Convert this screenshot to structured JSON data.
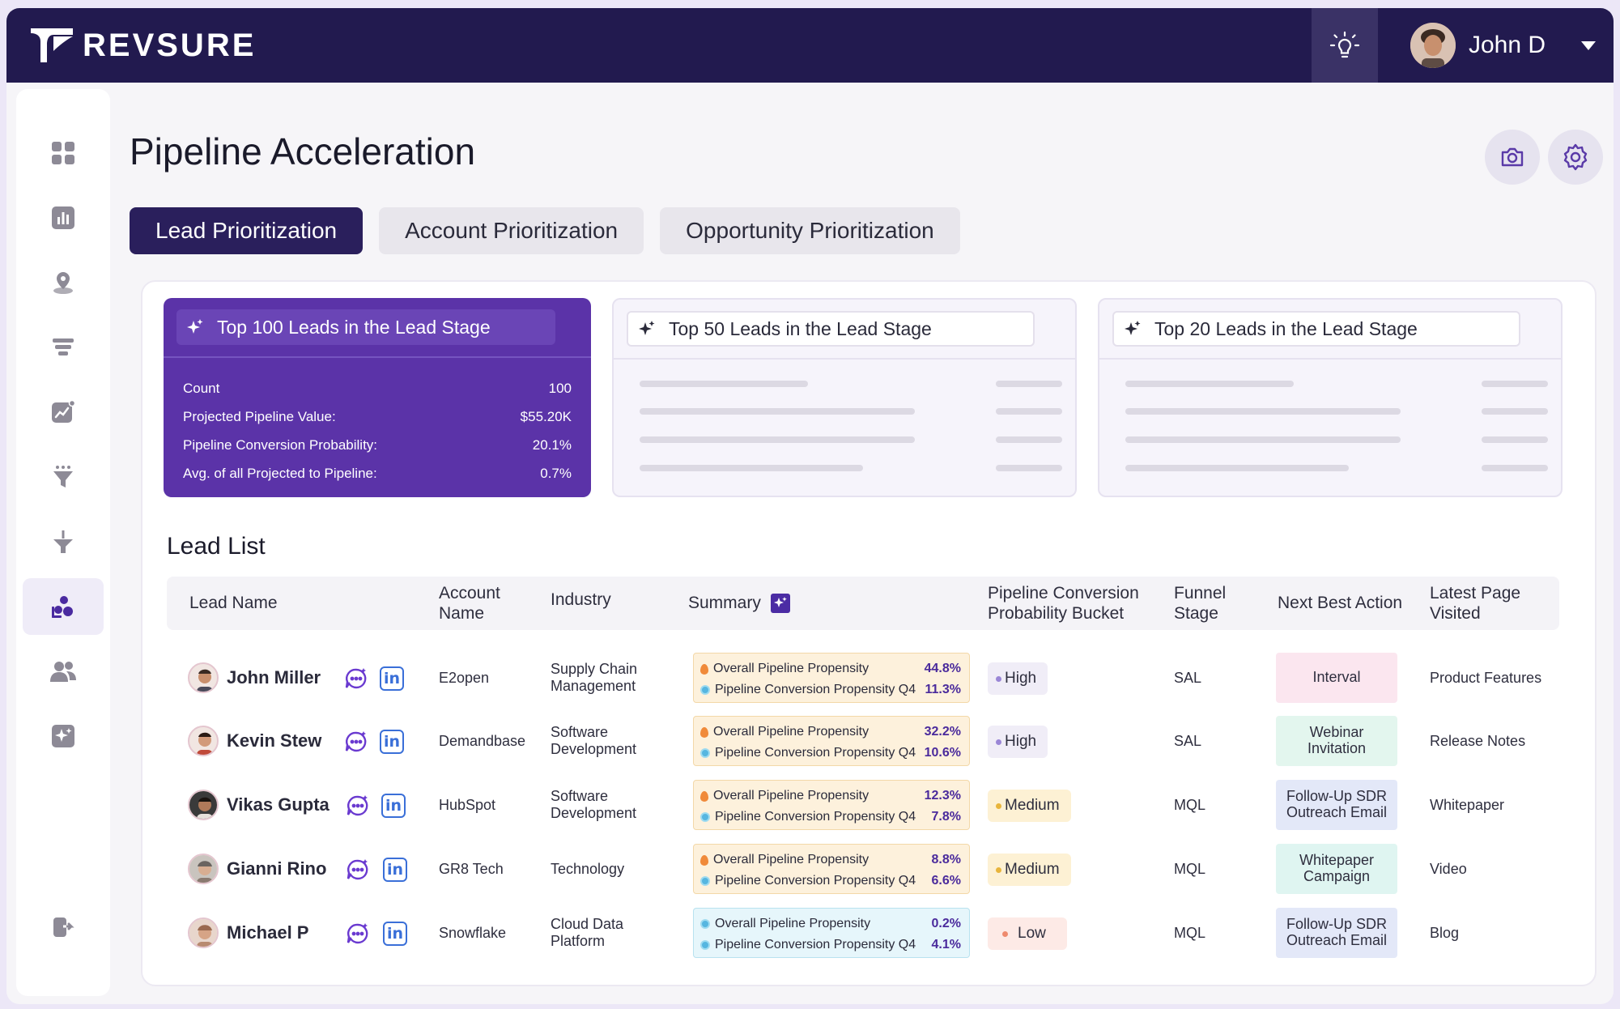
{
  "app": {
    "brand": "REVSURE"
  },
  "user": {
    "name": "John D"
  },
  "icons": {
    "bulb": "lightbulb-icon",
    "camera": "camera-icon",
    "settings": "gear-icon",
    "sparkle": "sparkle-icon",
    "chat": "chat-sparkle-icon",
    "linkedin": "linkedin-icon"
  },
  "sidebar": {
    "items": [
      {
        "name": "dashboard-grid-icon"
      },
      {
        "name": "bar-chart-icon"
      },
      {
        "name": "location-pin-icon"
      },
      {
        "name": "stacked-funnel-icon"
      },
      {
        "name": "trend-chart-icon"
      },
      {
        "name": "filter-funnel-icon"
      },
      {
        "name": "merge-funnel-icon"
      },
      {
        "name": "pipeline-acceleration-icon",
        "active": true
      },
      {
        "name": "users-icon"
      },
      {
        "name": "ai-sparkle-icon"
      },
      {
        "name": "logout-icon"
      }
    ]
  },
  "page": {
    "title": "Pipeline Acceleration"
  },
  "tabs": [
    {
      "label": "Lead Prioritization",
      "active": true
    },
    {
      "label": "Account Prioritization",
      "active": false
    },
    {
      "label": "Opportunity Prioritization",
      "active": false
    }
  ],
  "stats": {
    "top100": {
      "title": "Top 100 Leads in the Lead Stage",
      "rows": [
        {
          "label": "Count",
          "value": "100"
        },
        {
          "label": "Projected Pipeline Value:",
          "value": "$55.20K"
        },
        {
          "label": "Pipeline Conversion Probability:",
          "value": "20.1%"
        },
        {
          "label": "Avg. of all Projected to Pipeline:",
          "value": "0.7%"
        }
      ]
    },
    "top50": {
      "title": "Top 50 Leads in the Lead Stage"
    },
    "top20": {
      "title": "Top 20 Leads in the Lead Stage"
    }
  },
  "lead_list": {
    "title": "Lead List",
    "columns": {
      "lead_name": "Lead Name",
      "account_name_1": "Account",
      "account_name_2": "Name",
      "industry": "Industry",
      "summary": "Summary",
      "bucket_1": "Pipeline Conversion",
      "bucket_2": "Probability Bucket",
      "funnel_1": "Funnel",
      "funnel_2": "Stage",
      "next_action": "Next Best Action",
      "latest_1": "Latest Page",
      "latest_2": "Visited"
    },
    "summary_labels": {
      "overall": "Overall Pipeline Propensity",
      "q4": "Pipeline Conversion Propensity Q4"
    },
    "rows": [
      {
        "name": "John Miller",
        "account": "E2open",
        "industry_1": "Supply Chain",
        "industry_2": "Management",
        "overall": "44.8%",
        "q4": "11.3%",
        "bucket": "High",
        "stage": "SAL",
        "action_1": "Interval",
        "action_2": "",
        "page": "Product Features"
      },
      {
        "name": "Kevin Stew",
        "account": "Demandbase",
        "industry_1": "Software",
        "industry_2": "Development",
        "overall": "32.2%",
        "q4": "10.6%",
        "bucket": "High",
        "stage": "SAL",
        "action_1": "Webinar",
        "action_2": "Invitation",
        "page": "Release Notes"
      },
      {
        "name": "Vikas Gupta",
        "account": "HubSpot",
        "industry_1": "Software",
        "industry_2": "Development",
        "overall": "12.3%",
        "q4": "7.8%",
        "bucket": "Medium",
        "stage": "MQL",
        "action_1": "Follow-Up SDR",
        "action_2": "Outreach Email",
        "page": "Whitepaper"
      },
      {
        "name": "Gianni Rino",
        "account": "GR8 Tech",
        "industry_1": "Technology",
        "industry_2": "",
        "overall": "8.8%",
        "q4": "6.6%",
        "bucket": "Medium",
        "stage": "MQL",
        "action_1": "Whitepaper",
        "action_2": "Campaign",
        "page": "Video"
      },
      {
        "name": "Michael P",
        "account": "Snowflake",
        "industry_1": "Cloud Data",
        "industry_2": "Platform",
        "overall": "0.2%",
        "q4": "4.1%",
        "bucket": "Low",
        "stage": "MQL",
        "action_1": "Follow-Up SDR",
        "action_2": "Outreach Email",
        "page": "Blog"
      }
    ]
  },
  "colors": {
    "topbar": "#221a4f",
    "accent": "#5b33a8",
    "active_tab": "#2a1f5c",
    "high": "#9a86d6",
    "medium": "#e8b53c",
    "low": "#ee8a6e"
  }
}
